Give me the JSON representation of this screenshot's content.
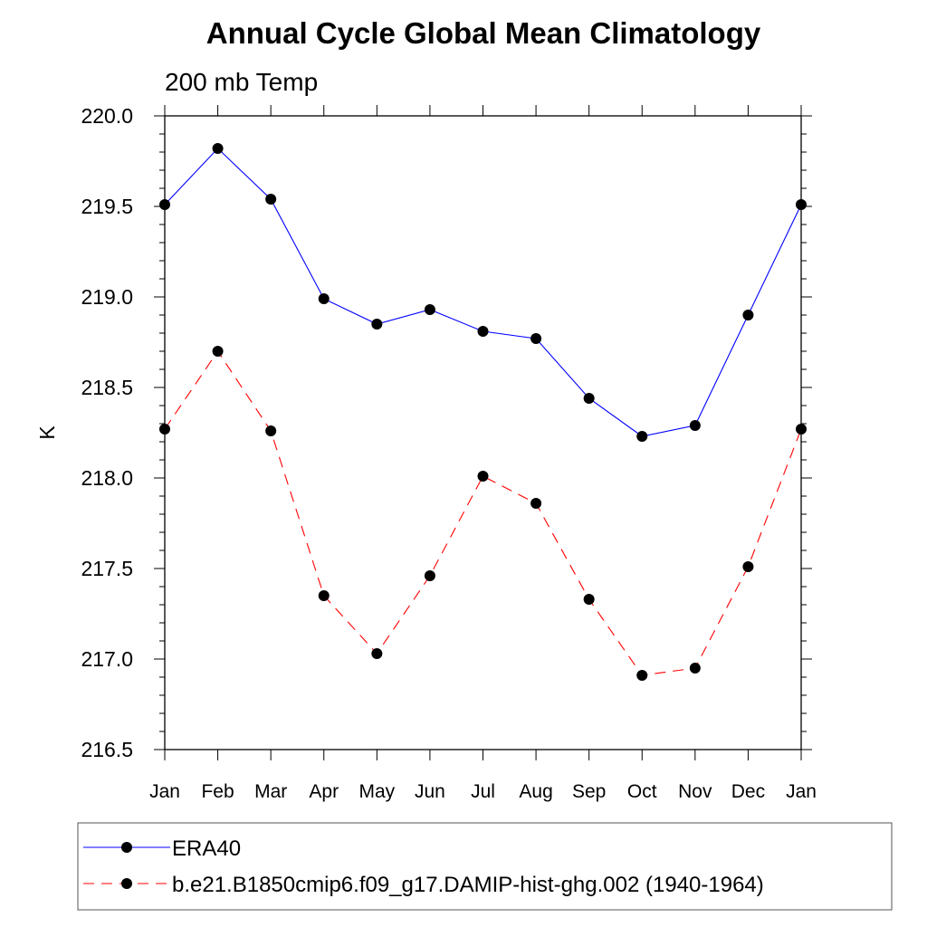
{
  "chart_data": {
    "type": "line",
    "title": "Annual Cycle Global Mean Climatology",
    "subtitle": "200 mb Temp",
    "ylabel": "K",
    "xlabel": "",
    "categories": [
      "Jan",
      "Feb",
      "Mar",
      "Apr",
      "May",
      "Jun",
      "Jul",
      "Aug",
      "Sep",
      "Oct",
      "Nov",
      "Dec",
      "Jan"
    ],
    "ylim": [
      216.5,
      220.0
    ],
    "yticks": [
      "216.5",
      "217.0",
      "217.5",
      "218.0",
      "218.5",
      "219.0",
      "219.5",
      "220.0"
    ],
    "grid": false,
    "legend_position": "bottom",
    "series": [
      {
        "name": "ERA40",
        "color": "#0000ff",
        "dash": "solid",
        "marker": "filled-circle",
        "values": [
          219.51,
          219.82,
          219.54,
          218.99,
          218.85,
          218.93,
          218.81,
          218.77,
          218.44,
          218.23,
          218.29,
          218.9,
          219.51
        ]
      },
      {
        "name": "b.e21.B1850cmip6.f09_g17.DAMIP-hist-ghg.002 (1940-1964)",
        "color": "#ff0000",
        "dash": "dashed",
        "marker": "filled-circle",
        "values": [
          218.27,
          218.7,
          218.26,
          217.35,
          217.03,
          217.46,
          218.01,
          217.86,
          217.33,
          216.91,
          216.95,
          217.51,
          218.27
        ]
      }
    ]
  }
}
